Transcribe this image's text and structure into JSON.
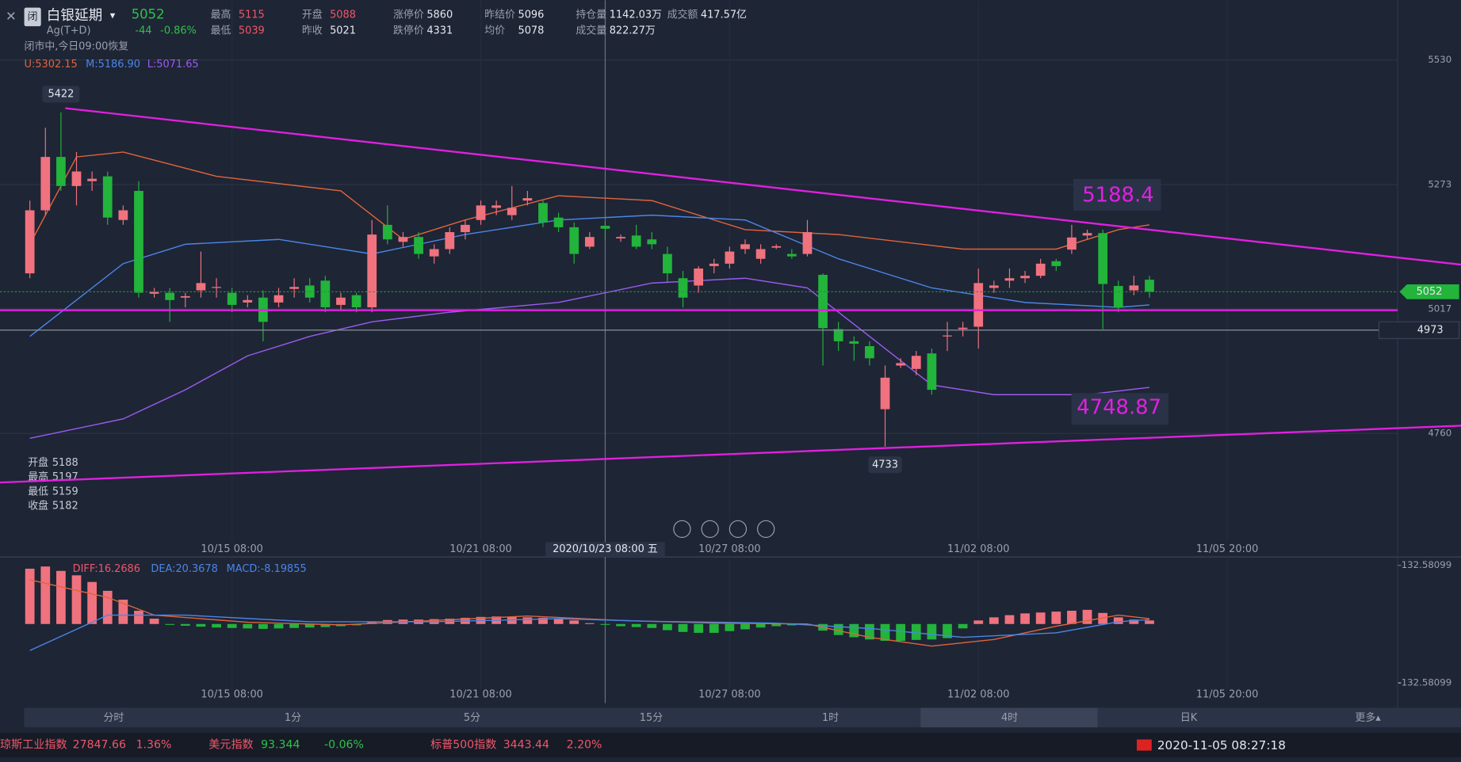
{
  "header": {
    "name": "白银延期",
    "code": "Ag(T+D)",
    "price": 5052,
    "change": -44,
    "change_pct": "-0.86%",
    "status": "闭市中,今日09:00恢复",
    "stats": [
      [
        "最高",
        "5115"
      ],
      [
        "开盘",
        "5088"
      ],
      [
        "涨停价",
        "5860"
      ],
      [
        "昨结价",
        "5096"
      ],
      [
        "持仓量",
        "1142.03万"
      ],
      [
        "成交额",
        "417.57亿"
      ],
      [
        "最低",
        "5039"
      ],
      [
        "昨收",
        "5021"
      ],
      [
        "跌停价",
        "4331"
      ],
      [
        "均价",
        "5078"
      ],
      [
        "成交量",
        "822.27万"
      ]
    ]
  },
  "chart_data": [
    {
      "type": "candlestick",
      "up_color": "#f0727e",
      "down_color": "#22b43b",
      "xlim": [
        -1.92,
        87.96
      ],
      "ylim": [
        4540,
        5653
      ],
      "yticks": [
        4760,
        5017,
        5273,
        5530
      ],
      "xticks": [
        {
          "value": 13,
          "label": "10/15 08:00"
        },
        {
          "value": 29,
          "label": "10/21 08:00"
        },
        {
          "value": 45,
          "label": "10/27 08:00"
        },
        {
          "value": 61,
          "label": "11/02 08:00"
        },
        {
          "value": 77,
          "label": "11/05 20:00"
        }
      ],
      "crosshair": {
        "index": 37,
        "label": "2020/10/23 08:00 五"
      },
      "info": [
        [
          "开盘",
          "5188"
        ],
        [
          "最高",
          "5197"
        ],
        [
          "最低",
          "5159"
        ],
        [
          "收盘",
          "5182"
        ]
      ],
      "candles": [
        [
          5090,
          5240,
          5080,
          5220
        ],
        [
          5220,
          5390,
          5210,
          5330
        ],
        [
          5330,
          5422,
          5260,
          5270
        ],
        [
          5270,
          5340,
          5230,
          5300
        ],
        [
          5280,
          5300,
          5260,
          5285
        ],
        [
          5290,
          5300,
          5190,
          5205
        ],
        [
          5200,
          5230,
          5190,
          5220
        ],
        [
          5260,
          5280,
          5040,
          5050
        ],
        [
          5048,
          5060,
          5040,
          5052
        ],
        [
          5050,
          5060,
          4990,
          5035
        ],
        [
          5040,
          5050,
          5020,
          5043
        ],
        [
          5055,
          5135,
          5040,
          5070
        ],
        [
          5060,
          5080,
          5040,
          5062
        ],
        [
          5050,
          5060,
          5010,
          5025
        ],
        [
          5030,
          5045,
          5020,
          5035
        ],
        [
          5040,
          5055,
          4950,
          4990
        ],
        [
          5030,
          5060,
          5020,
          5045
        ],
        [
          5058,
          5080,
          5040,
          5062
        ],
        [
          5065,
          5080,
          5030,
          5040
        ],
        [
          5075,
          5085,
          5010,
          5020
        ],
        [
          5025,
          5050,
          5015,
          5040
        ],
        [
          5045,
          5050,
          5010,
          5020
        ],
        [
          5020,
          5200,
          5010,
          5170
        ],
        [
          5190,
          5230,
          5150,
          5160
        ],
        [
          5155,
          5175,
          5145,
          5165
        ],
        [
          5165,
          5175,
          5120,
          5130
        ],
        [
          5125,
          5150,
          5110,
          5140
        ],
        [
          5140,
          5185,
          5130,
          5175
        ],
        [
          5175,
          5200,
          5160,
          5190
        ],
        [
          5200,
          5240,
          5190,
          5230
        ],
        [
          5225,
          5240,
          5210,
          5230
        ],
        [
          5210,
          5270,
          5200,
          5225
        ],
        [
          5240,
          5260,
          5230,
          5245
        ],
        [
          5235,
          5240,
          5185,
          5195
        ],
        [
          5205,
          5215,
          5175,
          5185
        ],
        [
          5185,
          5195,
          5110,
          5130
        ],
        [
          5145,
          5175,
          5140,
          5165
        ],
        [
          5188,
          5197,
          5159,
          5182
        ],
        [
          5162,
          5170,
          5155,
          5165
        ],
        [
          5168,
          5190,
          5140,
          5145
        ],
        [
          5160,
          5175,
          5140,
          5150
        ],
        [
          5130,
          5145,
          5070,
          5090
        ],
        [
          5080,
          5095,
          5020,
          5040
        ],
        [
          5065,
          5105,
          5050,
          5100
        ],
        [
          5105,
          5120,
          5090,
          5110
        ],
        [
          5110,
          5145,
          5100,
          5135
        ],
        [
          5140,
          5160,
          5130,
          5150
        ],
        [
          5120,
          5150,
          5110,
          5140
        ],
        [
          5143,
          5150,
          5140,
          5146
        ],
        [
          5130,
          5140,
          5120,
          5125
        ],
        [
          5130,
          5200,
          5125,
          5175
        ],
        [
          5087,
          5090,
          4900,
          4977
        ],
        [
          4975,
          4990,
          4930,
          4950
        ],
        [
          4950,
          4960,
          4910,
          4945
        ],
        [
          4940,
          4950,
          4900,
          4915
        ],
        [
          4810,
          4900,
          4733,
          4875
        ],
        [
          4900,
          4915,
          4895,
          4905
        ],
        [
          4893,
          4930,
          4880,
          4920
        ],
        [
          4925,
          4935,
          4840,
          4850
        ],
        [
          4960,
          4990,
          4930,
          4962
        ],
        [
          4975,
          4990,
          4960,
          4978
        ],
        [
          4980,
          5100,
          4935,
          5070
        ],
        [
          5060,
          5075,
          5050,
          5065
        ],
        [
          5075,
          5100,
          5060,
          5080
        ],
        [
          5080,
          5095,
          5070,
          5085
        ],
        [
          5085,
          5120,
          5080,
          5110
        ],
        [
          5115,
          5120,
          5095,
          5105
        ],
        [
          5139,
          5190,
          5130,
          5164
        ],
        [
          5168,
          5180,
          5160,
          5173
        ],
        [
          5173,
          5180,
          4975,
          5068
        ],
        [
          5064,
          5075,
          5010,
          5020
        ],
        [
          5055,
          5085,
          5045,
          5065
        ],
        [
          5077,
          5085,
          5040,
          5052
        ]
      ],
      "bands": [
        {
          "label": "U:5302.15",
          "color": "#e0643c",
          "x": [
            0,
            3,
            6,
            12,
            20,
            24,
            28,
            34,
            40,
            46,
            52,
            60,
            66,
            70,
            72
          ],
          "values": [
            5150,
            5330,
            5340,
            5290,
            5260,
            5160,
            5200,
            5250,
            5240,
            5180,
            5170,
            5140,
            5140,
            5180,
            5190
          ]
        },
        {
          "label": "M:5186.90",
          "color": "#4a86e8",
          "x": [
            0,
            6,
            10,
            16,
            22,
            28,
            34,
            40,
            46,
            52,
            58,
            64,
            70,
            72
          ],
          "values": [
            4960,
            5110,
            5150,
            5160,
            5130,
            5170,
            5200,
            5210,
            5200,
            5120,
            5060,
            5030,
            5020,
            5025
          ]
        },
        {
          "label": "L:5071.65",
          "color": "#9a5cf0",
          "x": [
            0,
            6,
            10,
            14,
            18,
            22,
            27,
            34,
            40,
            46,
            50,
            54,
            58,
            62,
            68,
            72
          ],
          "values": [
            4750,
            4790,
            4850,
            4920,
            4960,
            4990,
            5010,
            5030,
            5070,
            5080,
            5060,
            4960,
            4860,
            4840,
            4840,
            4855
          ]
        }
      ],
      "alert": 4973,
      "annotations": [
        "5188.4",
        "4748.87"
      ]
    },
    {
      "type": "macd",
      "xlim": [
        -1.92,
        87.96
      ],
      "ylim": [
        -132.58099,
        132.58099
      ],
      "yticks": [
        -132.58099,
        132.58099
      ],
      "legend": [
        "DIFF:16.2686",
        "DEA:20.3678",
        "MACD:-8.19855"
      ],
      "histogram": [
        125,
        130,
        120,
        110,
        95,
        75,
        55,
        30,
        12,
        -2,
        -4,
        -6,
        -8,
        -9,
        -10,
        -11,
        -10,
        -9,
        -8,
        -7,
        -5,
        -3,
        5,
        9,
        10,
        10,
        11,
        12,
        14,
        16,
        17,
        16,
        15,
        14,
        12,
        8,
        2,
        -2,
        -5,
        -7,
        -9,
        -14,
        -18,
        -20,
        -20,
        -16,
        -12,
        -8,
        -5,
        -3,
        -2,
        -15,
        -25,
        -30,
        -35,
        -38,
        -38,
        -36,
        -35,
        -32,
        -10,
        8,
        15,
        20,
        24,
        26,
        28,
        30,
        32,
        25,
        15,
        10,
        8
      ],
      "lines": [
        {
          "color": "#e0643c",
          "x": [
            0,
            5,
            8,
            14,
            20,
            26,
            32,
            38,
            44,
            50,
            54,
            58,
            62,
            66,
            70,
            72
          ],
          "values": [
            100,
            60,
            20,
            4,
            -2,
            8,
            18,
            8,
            2,
            0,
            -30,
            -50,
            -35,
            -5,
            20,
            12
          ]
        },
        {
          "color": "#4a86e8",
          "x": [
            0,
            5,
            10,
            18,
            26,
            34,
            40,
            48,
            54,
            60,
            66,
            70,
            72
          ],
          "values": [
            -60,
            20,
            20,
            5,
            5,
            12,
            6,
            2,
            -10,
            -30,
            -20,
            5,
            10
          ]
        }
      ]
    }
  ],
  "tabs": [
    "分时",
    "1分",
    "5分",
    "15分",
    "1时",
    "4时",
    "日K",
    "更多▴"
  ],
  "ticker": [
    [
      "琼斯工业指数",
      "27847.66",
      "1.36%"
    ],
    [
      "美元指数",
      "93.344",
      "-0.06%"
    ],
    [
      "标普500指数",
      "3443.44",
      "2.20%"
    ]
  ],
  "clock": "2020-11-05 08:27:18"
}
